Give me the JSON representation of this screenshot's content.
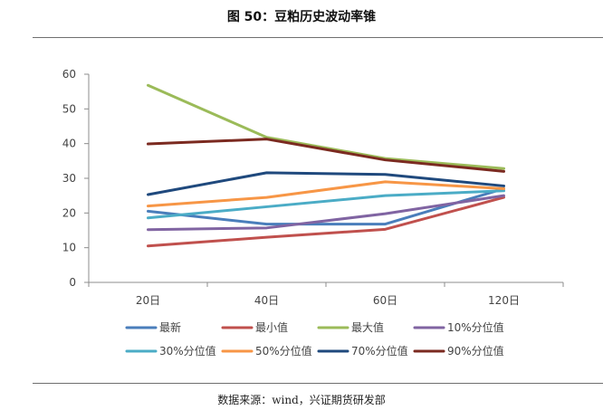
{
  "header": {
    "title": "图 50：豆粕历史波动率锥"
  },
  "footer": {
    "source": "数据来源：wind，兴证期货研发部"
  },
  "chart_data": {
    "type": "line",
    "title": "图 50：豆粕历史波动率锥",
    "xlabel": "",
    "ylabel": "",
    "categories": [
      "20日",
      "40日",
      "60日",
      "120日"
    ],
    "ylim": [
      0,
      60
    ],
    "yticks": [
      0,
      10,
      20,
      30,
      40,
      50,
      60
    ],
    "grid": false,
    "legend": "bottom",
    "series": [
      {
        "name": "最新",
        "color": "#4a7ebb",
        "values": [
          20.5,
          16.8,
          16.8,
          27.0
        ]
      },
      {
        "name": "最小值",
        "color": "#c0504d",
        "values": [
          10.5,
          13.0,
          15.3,
          24.5
        ]
      },
      {
        "name": "最大值",
        "color": "#9bbb59",
        "values": [
          56.8,
          41.8,
          35.7,
          32.8
        ]
      },
      {
        "name": "10%分位值",
        "color": "#8064a2",
        "values": [
          15.2,
          15.7,
          19.8,
          25.0
        ]
      },
      {
        "name": "30%分位值",
        "color": "#4bacc6",
        "values": [
          18.6,
          21.8,
          25.0,
          26.4
        ]
      },
      {
        "name": "50%分位值",
        "color": "#f79646",
        "values": [
          22.0,
          24.5,
          29.0,
          27.0
        ]
      },
      {
        "name": "70%分位值",
        "color": "#1f497d",
        "values": [
          25.3,
          31.6,
          31.1,
          27.8
        ]
      },
      {
        "name": "90%分位值",
        "color": "#7b2a20",
        "values": [
          39.9,
          41.3,
          35.3,
          32.0
        ]
      }
    ]
  }
}
